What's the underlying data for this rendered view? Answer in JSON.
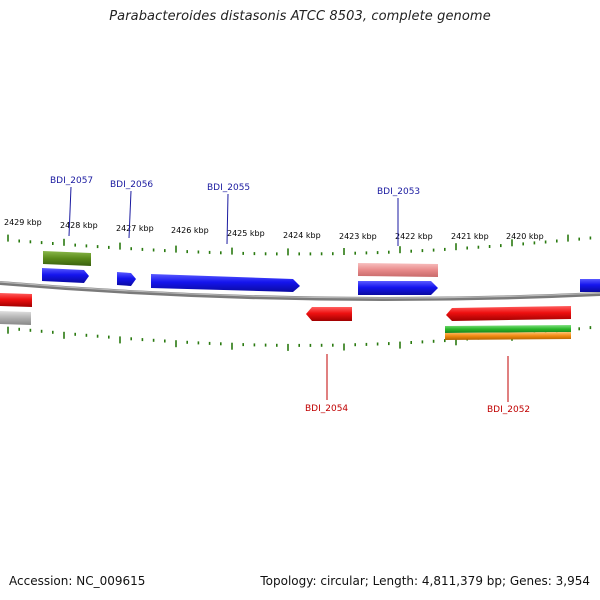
{
  "title": "Parabacteroides distasonis ATCC 8503, complete genome",
  "footer": {
    "accession": "Accession: NC_009615",
    "summary": "Topology: circular; Length: 4,811,379 bp; Genes: 3,954"
  },
  "colors": {
    "forward_gene": "#1a1aee",
    "reverse_gene": "#ee1010",
    "forward_label": "#1a1aa0",
    "reverse_label": "#c00000",
    "tick": "#2a7a10",
    "backbone": "#808080",
    "olive_feature": "#5a8a1a",
    "pink_feature": "#e88a8a",
    "gray_feature": "#b0b0b0",
    "green_feature": "#2ab82a",
    "orange_feature": "#f08a10"
  },
  "kbp_ticks": [
    {
      "kbp": 2429,
      "label": "2429 kbp"
    },
    {
      "kbp": 2428,
      "label": "2428 kbp"
    },
    {
      "kbp": 2427,
      "label": "2427 kbp"
    },
    {
      "kbp": 2426,
      "label": "2426 kbp"
    },
    {
      "kbp": 2425,
      "label": "2425 kbp"
    },
    {
      "kbp": 2424,
      "label": "2424 kbp"
    },
    {
      "kbp": 2423,
      "label": "2423 kbp"
    },
    {
      "kbp": 2422,
      "label": "2422 kbp"
    },
    {
      "kbp": 2421,
      "label": "2421 kbp"
    },
    {
      "kbp": 2420,
      "label": "2420 kbp"
    }
  ],
  "gene_labels": {
    "forward": [
      "BDI_2057",
      "BDI_2056",
      "BDI_2055",
      "BDI_2053"
    ],
    "reverse": [
      "BDI_2054",
      "BDI_2052"
    ]
  }
}
